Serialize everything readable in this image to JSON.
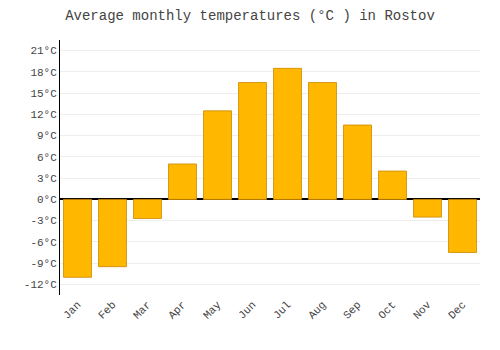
{
  "chart_data": {
    "type": "bar",
    "title": "Average monthly temperatures (°C ) in Rostov",
    "categories": [
      "Jan",
      "Feb",
      "Mar",
      "Apr",
      "May",
      "Jun",
      "Jul",
      "Aug",
      "Sep",
      "Oct",
      "Nov",
      "Dec"
    ],
    "values": [
      -11,
      -9.5,
      -2.7,
      5,
      12.5,
      16.5,
      18.5,
      16.5,
      10.5,
      4,
      -2.5,
      -7.5
    ],
    "color": "#ffb700",
    "ylim": [
      -13.5,
      22.5
    ],
    "yticks": [
      {
        "value": -12,
        "label": "-12°C"
      },
      {
        "value": -9,
        "label": "-9°C"
      },
      {
        "value": -6,
        "label": "-6°C"
      },
      {
        "value": -3,
        "label": "-3°C"
      },
      {
        "value": 0,
        "label": "0°C"
      },
      {
        "value": 3,
        "label": "3°C"
      },
      {
        "value": 6,
        "label": "6°C"
      },
      {
        "value": 9,
        "label": "9°C"
      },
      {
        "value": 12,
        "label": "12°C"
      },
      {
        "value": 15,
        "label": "15°C"
      },
      {
        "value": 18,
        "label": "18°C"
      },
      {
        "value": 21,
        "label": "21°C"
      }
    ],
    "grid": true
  }
}
